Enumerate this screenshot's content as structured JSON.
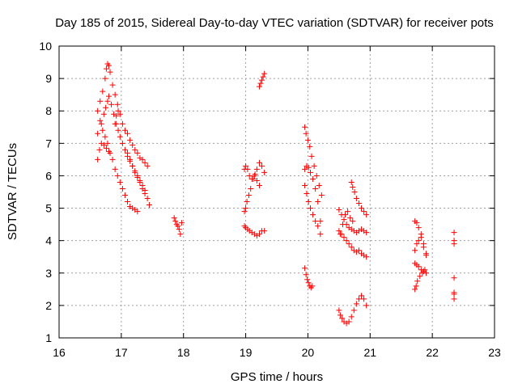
{
  "chart_data": {
    "type": "scatter",
    "title": "Day 185 of 2015, Sidereal Day-to-day VTEC variation (SDTVAR) for receiver pots",
    "xlabel": "GPS time / hours",
    "ylabel": "SDTVAR / TECUs",
    "xlim": [
      16,
      23
    ],
    "ylim": [
      1,
      10
    ],
    "xticks": [
      16,
      17,
      18,
      19,
      20,
      21,
      22,
      23
    ],
    "yticks": [
      1,
      2,
      3,
      4,
      5,
      6,
      7,
      8,
      9,
      10
    ],
    "xtick_labels": [
      "16",
      "17",
      "18",
      "19",
      "20",
      "21",
      "22",
      "23"
    ],
    "ytick_labels": [
      "1",
      "2",
      "3",
      "4",
      "5",
      "6",
      "7",
      "8",
      "9",
      "10"
    ],
    "grid": true,
    "marker": "plus",
    "color": "#ff0000",
    "tracks": [
      {
        "x": [
          16.62,
          16.68,
          16.72,
          16.75,
          16.78,
          16.8,
          16.84,
          16.88,
          16.92,
          16.95,
          16.98,
          17.02,
          17.06,
          17.1,
          17.14,
          17.18,
          17.22,
          17.26,
          17.3,
          17.34,
          17.38,
          17.42,
          17.45
        ],
        "y": [
          7.3,
          7.6,
          7.9,
          8.1,
          8.3,
          8.45,
          8.2,
          7.9,
          7.6,
          7.4,
          7.2,
          7.0,
          6.8,
          6.7,
          6.5,
          6.3,
          6.1,
          5.95,
          5.8,
          5.6,
          5.45,
          5.3,
          5.1
        ]
      },
      {
        "x": [
          16.62,
          16.66,
          16.7,
          16.74,
          16.78,
          16.82,
          16.86,
          16.9,
          16.94,
          16.98,
          17.02,
          17.06,
          17.1,
          17.14,
          17.18,
          17.22,
          17.26
        ],
        "y": [
          8.0,
          7.7,
          7.4,
          7.2,
          7.0,
          6.7,
          6.5,
          6.2,
          6.0,
          5.8,
          5.6,
          5.4,
          5.2,
          5.05,
          5.0,
          4.95,
          4.9
        ]
      },
      {
        "x": [
          16.66,
          16.7,
          16.74,
          16.76,
          16.78,
          16.8,
          16.82,
          16.86,
          16.9,
          16.94
        ],
        "y": [
          8.3,
          8.6,
          9.0,
          9.3,
          9.45,
          9.4,
          9.2,
          8.8,
          8.5,
          8.2
        ]
      },
      {
        "x": [
          16.9,
          16.92,
          16.95,
          16.98,
          17.02,
          17.06,
          17.1,
          17.14,
          17.18,
          17.22,
          17.26,
          17.3,
          17.34,
          17.38,
          17.42
        ],
        "y": [
          7.6,
          7.85,
          8.0,
          7.9,
          7.6,
          7.4,
          7.3,
          7.1,
          6.95,
          6.8,
          6.7,
          6.55,
          6.5,
          6.4,
          6.3
        ]
      },
      {
        "x": [
          16.62,
          16.65,
          16.68,
          16.72,
          16.76,
          16.8
        ],
        "y": [
          6.5,
          6.8,
          7.0,
          6.95,
          6.85,
          6.75
        ]
      },
      {
        "x": [
          17.1,
          17.14,
          17.18,
          17.22,
          17.26,
          17.3,
          17.34,
          17.38
        ],
        "y": [
          6.6,
          6.45,
          6.3,
          6.15,
          6.0,
          5.85,
          5.7,
          5.55
        ]
      },
      {
        "x": [
          17.85,
          17.87,
          17.89,
          17.91,
          17.93,
          17.95,
          17.97
        ],
        "y": [
          4.7,
          4.6,
          4.5,
          4.45,
          4.35,
          4.2,
          4.55
        ]
      },
      {
        "x": [
          18.98,
          19.0,
          19.03,
          19.06,
          19.1,
          19.14,
          19.18,
          19.22,
          19.26,
          19.3
        ],
        "y": [
          4.45,
          4.4,
          4.35,
          4.3,
          4.25,
          4.2,
          4.15,
          4.2,
          4.3,
          4.3
        ]
      },
      {
        "x": [
          18.98,
          19.0,
          19.02,
          19.05,
          19.08,
          19.12,
          19.15,
          19.18,
          19.22,
          19.26,
          19.3
        ],
        "y": [
          4.9,
          5.0,
          5.2,
          5.4,
          5.6,
          5.9,
          6.05,
          6.2,
          6.4,
          6.3,
          6.1
        ]
      },
      {
        "x": [
          18.98,
          19.0,
          19.03,
          19.06,
          19.1,
          19.14,
          19.18,
          19.22
        ],
        "y": [
          6.2,
          6.3,
          6.2,
          6.0,
          5.9,
          6.0,
          5.85,
          5.7
        ]
      },
      {
        "x": [
          19.22,
          19.24,
          19.26,
          19.28,
          19.3
        ],
        "y": [
          8.75,
          8.85,
          8.95,
          9.05,
          9.15
        ]
      },
      {
        "x": [
          19.95,
          19.97,
          19.99,
          20.01,
          20.03,
          20.05,
          20.07
        ],
        "y": [
          3.15,
          2.95,
          2.8,
          2.7,
          2.6,
          2.55,
          2.6
        ]
      },
      {
        "x": [
          19.95,
          19.97,
          20.0,
          20.03,
          20.06,
          20.1,
          20.14,
          20.18,
          20.22
        ],
        "y": [
          7.5,
          7.3,
          7.1,
          6.9,
          6.6,
          6.3,
          6.0,
          5.7,
          5.4
        ]
      },
      {
        "x": [
          19.95,
          19.98,
          20.01,
          20.04,
          20.08,
          20.12,
          20.16,
          20.2
        ],
        "y": [
          6.2,
          6.3,
          6.25,
          6.1,
          5.9,
          5.6,
          5.2,
          4.6
        ]
      },
      {
        "x": [
          19.95,
          19.98,
          20.01,
          20.04,
          20.08,
          20.12,
          20.16,
          20.2
        ],
        "y": [
          5.7,
          5.45,
          5.2,
          5.0,
          4.8,
          4.6,
          4.45,
          4.2
        ]
      },
      {
        "x": [
          20.5,
          20.52,
          20.55,
          20.58,
          20.62,
          20.66,
          20.7,
          20.74,
          20.78,
          20.82,
          20.86,
          20.9,
          20.94
        ],
        "y": [
          1.85,
          1.7,
          1.6,
          1.5,
          1.45,
          1.5,
          1.65,
          1.85,
          2.05,
          2.2,
          2.3,
          2.2,
          2.0
        ]
      },
      {
        "x": [
          20.5,
          20.54,
          20.58,
          20.62,
          20.66,
          20.7,
          20.74,
          20.78,
          20.82,
          20.86,
          20.9,
          20.94
        ],
        "y": [
          4.95,
          4.8,
          4.65,
          4.5,
          4.4,
          4.35,
          4.3,
          4.25,
          4.3,
          4.35,
          4.3,
          4.25
        ]
      },
      {
        "x": [
          20.5,
          20.54,
          20.58,
          20.62,
          20.66,
          20.7,
          20.74,
          20.78,
          20.82,
          20.86,
          20.9,
          20.94
        ],
        "y": [
          4.3,
          4.2,
          4.1,
          4.0,
          3.9,
          3.8,
          3.7,
          3.65,
          3.7,
          3.6,
          3.55,
          3.5
        ]
      },
      {
        "x": [
          20.7,
          20.72,
          20.75,
          20.78,
          20.82,
          20.86,
          20.9,
          20.94
        ],
        "y": [
          5.8,
          5.65,
          5.5,
          5.3,
          5.15,
          5.0,
          4.9,
          4.8
        ]
      },
      {
        "x": [
          20.52,
          20.56,
          20.6,
          20.64,
          20.68,
          20.72
        ],
        "y": [
          4.2,
          4.5,
          4.8,
          4.9,
          4.7,
          4.6
        ]
      },
      {
        "x": [
          21.72,
          21.75,
          21.78,
          21.82,
          21.86,
          21.9
        ],
        "y": [
          4.6,
          4.55,
          4.4,
          4.2,
          3.9,
          3.6
        ]
      },
      {
        "x": [
          21.72,
          21.75,
          21.78,
          21.82,
          21.86,
          21.9
        ],
        "y": [
          3.7,
          3.9,
          4.0,
          4.1,
          3.8,
          3.55
        ]
      },
      {
        "x": [
          21.72,
          21.75,
          21.78,
          21.82,
          21.86,
          21.9
        ],
        "y": [
          3.3,
          3.25,
          3.2,
          3.1,
          3.05,
          3.0
        ]
      },
      {
        "x": [
          21.72,
          21.74,
          21.76,
          21.8,
          21.84,
          21.88
        ],
        "y": [
          2.5,
          2.6,
          2.75,
          2.9,
          3.0,
          3.1
        ]
      },
      {
        "x": [
          22.35,
          22.35,
          22.35,
          22.35,
          22.35,
          22.35,
          22.35
        ],
        "y": [
          4.25,
          4.0,
          3.9,
          2.85,
          2.4,
          2.35,
          2.2
        ]
      }
    ]
  }
}
